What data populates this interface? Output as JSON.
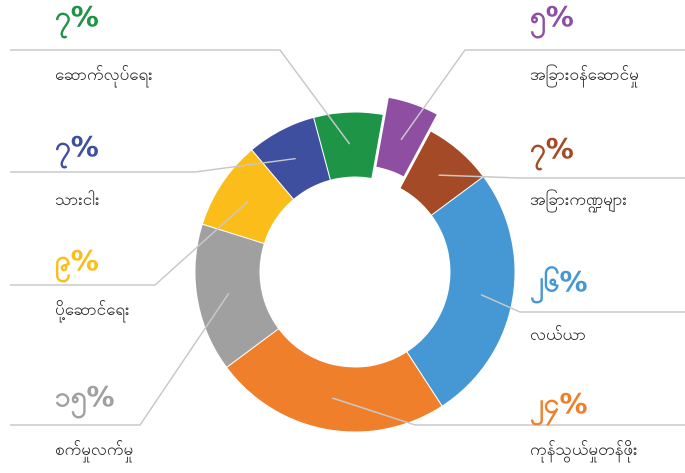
{
  "chart_data": {
    "type": "donut",
    "categories": [
      "ဆောက်လုပ်ရေး",
      "အခြားဝန်ဆောင်မှု",
      "အခြားကဏ္ဍများ",
      "လယ်ယာ",
      "ကုန်သွယ်မှုတန်ဖိုး",
      "စက်မှုလက်မှု",
      "ပို့ဆောင်ရေး",
      "သားငါး"
    ],
    "values": [
      7,
      5,
      7,
      26,
      24,
      15,
      9,
      7
    ],
    "value_labels": [
      "၇%",
      "၅%",
      "၇%",
      "၂၆%",
      "၂၄%",
      "၁၅%",
      "၉%",
      "၇%"
    ],
    "colors": [
      "#1e9447",
      "#8e4fa3",
      "#a54a26",
      "#4598d3",
      "#f07f2b",
      "#a0a0a0",
      "#fbbd19",
      "#3f4fa0"
    ]
  }
}
